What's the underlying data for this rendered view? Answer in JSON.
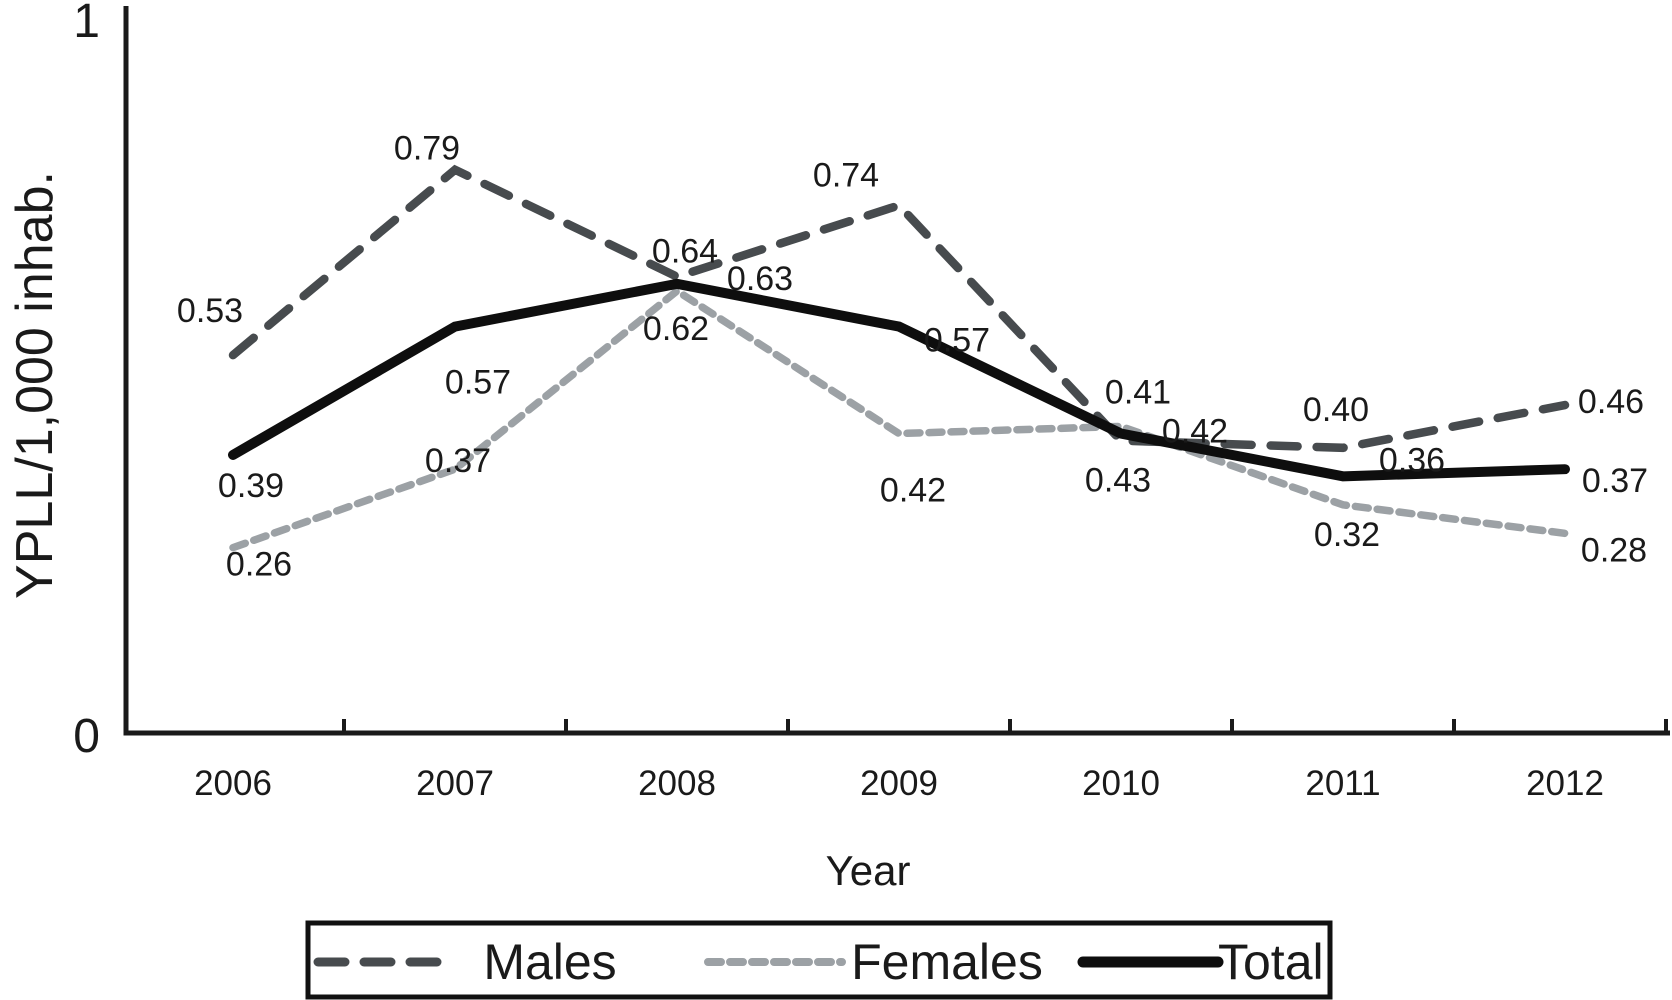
{
  "chart_data": {
    "type": "line",
    "title": "",
    "xlabel": "Year",
    "ylabel": "YPLL/1,000 inhab.",
    "categories": [
      "2006",
      "2007",
      "2008",
      "2009",
      "2010",
      "2011",
      "2012"
    ],
    "ylim": [
      0,
      1
    ],
    "yticks": [
      {
        "value": 0,
        "label": "0"
      },
      {
        "value": 1,
        "label": "1"
      }
    ],
    "grid": false,
    "legend_position": "bottom",
    "axis_color": "#1a1a1a",
    "series": [
      {
        "name": "Males",
        "style": "long-dash",
        "color": "#474b4e",
        "values": [
          0.53,
          0.79,
          0.64,
          0.74,
          0.41,
          0.4,
          0.46
        ],
        "value_labels": [
          "0.53",
          "0.79",
          "0.64",
          "0.74",
          "0.41",
          "0.40",
          "0.46"
        ],
        "label_offsets": [
          [
            -23,
            -45
          ],
          [
            -28,
            -22
          ],
          [
            8,
            -26
          ],
          [
            -53,
            -31
          ],
          [
            17,
            -49
          ],
          [
            -7,
            -39
          ],
          [
            46,
            -4
          ]
        ]
      },
      {
        "name": "Females",
        "style": "short-dash",
        "color": "#9ca1a5",
        "values": [
          0.26,
          0.37,
          0.62,
          0.42,
          0.43,
          0.32,
          0.28
        ],
        "value_labels": [
          "0.26",
          "0.37",
          "0.62",
          "0.42",
          "0.43",
          "0.32",
          "0.28"
        ],
        "label_offsets": [
          [
            26,
            16
          ],
          [
            3,
            -9
          ],
          [
            -1,
            37
          ],
          [
            14,
            56
          ],
          [
            -3,
            53
          ],
          [
            4,
            29
          ],
          [
            49,
            16
          ]
        ]
      },
      {
        "name": "Total",
        "style": "solid",
        "color": "#0e0e0e",
        "values": [
          0.39,
          0.57,
          0.63,
          0.57,
          0.42,
          0.36,
          0.37
        ],
        "value_labels": [
          "0.39",
          "0.57",
          "0.63",
          "0.57",
          "0.42",
          "0.36",
          "0.37"
        ],
        "label_offsets": [
          [
            18,
            30
          ],
          [
            23,
            55
          ],
          [
            83,
            -6
          ],
          [
            58,
            13
          ],
          [
            74,
            -3
          ],
          [
            69,
            -17
          ],
          [
            50,
            11
          ]
        ]
      }
    ]
  }
}
